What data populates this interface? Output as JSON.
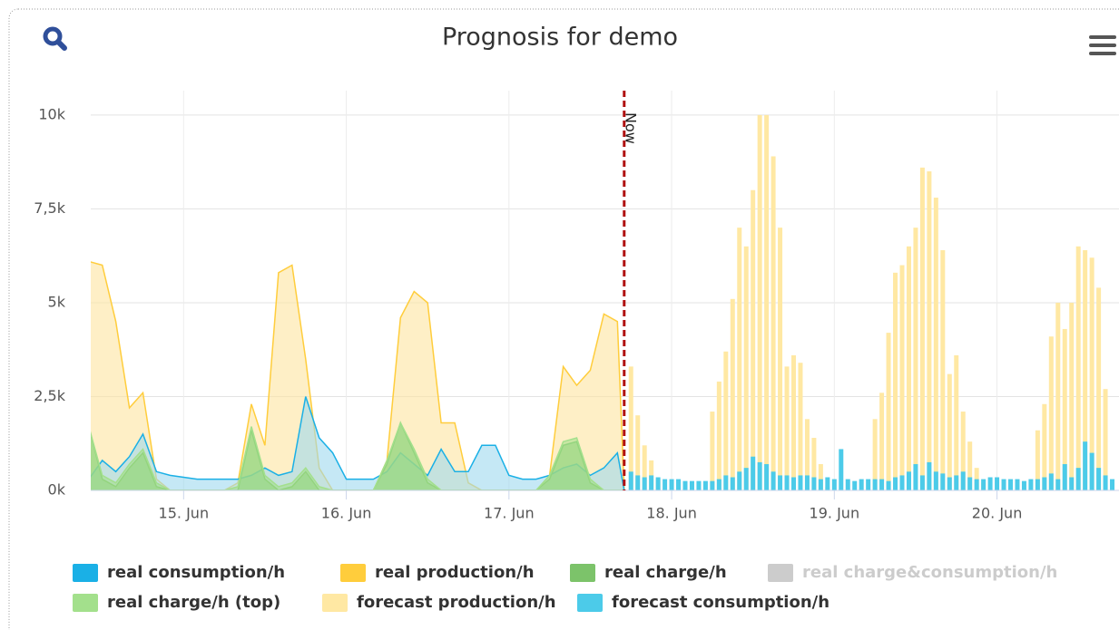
{
  "chart_data": {
    "type": "mixed",
    "title": "Prognosis for demo",
    "xlim": [
      -13.7,
      138
    ],
    "xticks": [
      {
        "value": 0,
        "label": "15. Jun"
      },
      {
        "value": 24,
        "label": "16. Jun"
      },
      {
        "value": 48,
        "label": "17. Jun"
      },
      {
        "value": 72,
        "label": "18. Jun"
      },
      {
        "value": 96,
        "label": "19. Jun"
      },
      {
        "value": 120,
        "label": "20. Jun"
      }
    ],
    "ylim": [
      0,
      10650
    ],
    "yticks": [
      {
        "value": 0,
        "label": "0k"
      },
      {
        "value": 2500,
        "label": "2,5k"
      },
      {
        "value": 5000,
        "label": "5k"
      },
      {
        "value": 7500,
        "label": "7,5k"
      },
      {
        "value": 10000,
        "label": "10k"
      }
    ],
    "grid": true,
    "plot_lines": [
      {
        "value": 65,
        "label": "Now",
        "color": "#b01010"
      }
    ],
    "series": [
      {
        "name": "real consumption/h",
        "type": "area",
        "color": "#1ab0e6",
        "fill": "#9ed9ef",
        "x": [
          -14,
          -12,
          -10,
          -8,
          -6,
          -4,
          -2,
          0,
          2,
          4,
          6,
          8,
          10,
          12,
          14,
          16,
          18,
          20,
          22,
          24,
          26,
          28,
          30,
          32,
          34,
          36,
          38,
          40,
          42,
          44,
          46,
          48,
          50,
          52,
          54,
          56,
          58,
          60,
          62,
          64,
          65
        ],
        "values": [
          300,
          800,
          500,
          900,
          1500,
          500,
          400,
          350,
          300,
          300,
          300,
          300,
          400,
          600,
          400,
          500,
          2500,
          1400,
          1000,
          300,
          300,
          300,
          500,
          1000,
          700,
          400,
          1100,
          500,
          500,
          1200,
          1200,
          400,
          300,
          300,
          400,
          600,
          700,
          400,
          600,
          1000,
          0
        ]
      },
      {
        "name": "real production/h",
        "type": "area",
        "color": "#ffcd3c",
        "fill": "#fde4a0",
        "x": [
          -14,
          -12,
          -10,
          -8,
          -6,
          -4,
          -2,
          0,
          2,
          4,
          6,
          8,
          10,
          12,
          14,
          16,
          18,
          20,
          22,
          24,
          26,
          28,
          30,
          32,
          34,
          36,
          38,
          40,
          42,
          44,
          46,
          48,
          50,
          52,
          54,
          56,
          58,
          60,
          62,
          64,
          65
        ],
        "values": [
          6100,
          6000,
          4500,
          2200,
          2600,
          300,
          0,
          0,
          0,
          0,
          0,
          200,
          2300,
          1200,
          5800,
          6000,
          3500,
          600,
          0,
          0,
          0,
          0,
          800,
          4600,
          5300,
          5000,
          1800,
          1800,
          200,
          0,
          0,
          0,
          0,
          0,
          400,
          3300,
          2800,
          3200,
          4700,
          4500,
          0
        ]
      },
      {
        "name": "real charge/h",
        "type": "area",
        "color": "#7cc36a",
        "fill": "#86c673",
        "x": [
          -14,
          -12,
          -10,
          -8,
          -6,
          -4,
          -2,
          0,
          2,
          4,
          6,
          8,
          10,
          12,
          14,
          16,
          18,
          20,
          22,
          24,
          26,
          28,
          30,
          32,
          34,
          36,
          38,
          40,
          42,
          44,
          46,
          48,
          50,
          52,
          54,
          56,
          58,
          60,
          62,
          64,
          65
        ],
        "values": [
          1700,
          300,
          100,
          600,
          1000,
          100,
          0,
          0,
          0,
          0,
          0,
          0,
          1600,
          300,
          0,
          100,
          500,
          0,
          0,
          0,
          0,
          0,
          700,
          1800,
          1000,
          200,
          0,
          0,
          0,
          0,
          0,
          0,
          0,
          0,
          300,
          1200,
          1300,
          200,
          0,
          0,
          0
        ]
      },
      {
        "name": "real charge&consumption/h",
        "type": "area",
        "color": "#cccccc",
        "visible": false
      },
      {
        "name": "real charge/h (top)",
        "type": "area",
        "color": "#a3e08c",
        "fill": "#a3e08c",
        "x": [
          -14,
          -12,
          -10,
          -8,
          -6,
          -4,
          -2,
          0,
          2,
          4,
          6,
          8,
          10,
          12,
          14,
          16,
          18,
          20,
          22,
          24,
          26,
          28,
          30,
          32,
          34,
          36,
          38,
          40,
          42,
          44,
          46,
          48,
          50,
          52,
          54,
          56,
          58,
          60,
          62,
          64,
          65
        ],
        "values": [
          1700,
          400,
          200,
          700,
          1100,
          200,
          0,
          0,
          0,
          0,
          0,
          100,
          1700,
          400,
          100,
          200,
          600,
          100,
          0,
          0,
          0,
          0,
          800,
          1800,
          1100,
          300,
          0,
          0,
          0,
          0,
          0,
          0,
          0,
          0,
          400,
          1300,
          1400,
          300,
          0,
          0,
          0
        ]
      },
      {
        "name": "forecast production/h",
        "type": "column",
        "color": "#ffe8a3",
        "x": [
          66,
          67,
          68,
          69,
          70,
          71,
          72,
          73,
          74,
          75,
          76,
          77,
          78,
          79,
          80,
          81,
          82,
          83,
          84,
          85,
          86,
          87,
          88,
          89,
          90,
          91,
          92,
          93,
          94,
          95,
          96,
          97,
          98,
          99,
          100,
          101,
          102,
          103,
          104,
          105,
          106,
          107,
          108,
          109,
          110,
          111,
          112,
          113,
          114,
          115,
          116,
          117,
          118,
          119,
          120,
          121,
          122,
          123,
          124,
          125,
          126,
          127,
          128,
          129,
          130,
          131,
          132,
          133,
          134,
          135,
          136,
          137
        ],
        "values": [
          3300,
          2000,
          1200,
          800,
          300,
          0,
          0,
          0,
          0,
          0,
          0,
          0,
          2100,
          2900,
          3700,
          5100,
          7000,
          6500,
          8000,
          10000,
          10000,
          8900,
          7000,
          3300,
          3600,
          3400,
          1900,
          1400,
          700,
          100,
          0,
          0,
          0,
          0,
          0,
          0,
          1900,
          2600,
          4200,
          5800,
          6000,
          6500,
          7000,
          8600,
          8500,
          7800,
          6400,
          3100,
          3600,
          2100,
          1300,
          600,
          200,
          0,
          0,
          0,
          0,
          0,
          0,
          0,
          1600,
          2300,
          4100,
          5000,
          4300,
          5000,
          6500,
          6400,
          6200,
          5400,
          2700,
          0
        ]
      },
      {
        "name": "forecast consumption/h",
        "type": "column",
        "color": "#4ccbe9",
        "x": [
          66,
          67,
          68,
          69,
          70,
          71,
          72,
          73,
          74,
          75,
          76,
          77,
          78,
          79,
          80,
          81,
          82,
          83,
          84,
          85,
          86,
          87,
          88,
          89,
          90,
          91,
          92,
          93,
          94,
          95,
          96,
          97,
          98,
          99,
          100,
          101,
          102,
          103,
          104,
          105,
          106,
          107,
          108,
          109,
          110,
          111,
          112,
          113,
          114,
          115,
          116,
          117,
          118,
          119,
          120,
          121,
          122,
          123,
          124,
          125,
          126,
          127,
          128,
          129,
          130,
          131,
          132,
          133,
          134,
          135,
          136,
          137
        ],
        "values": [
          500,
          400,
          350,
          400,
          350,
          300,
          300,
          300,
          250,
          250,
          250,
          250,
          250,
          300,
          400,
          350,
          500,
          600,
          900,
          750,
          700,
          500,
          400,
          400,
          350,
          400,
          400,
          350,
          300,
          350,
          300,
          1100,
          300,
          250,
          300,
          300,
          300,
          300,
          250,
          350,
          400,
          500,
          700,
          400,
          750,
          500,
          450,
          350,
          400,
          500,
          350,
          300,
          300,
          350,
          350,
          300,
          300,
          300,
          250,
          300,
          300,
          350,
          450,
          300,
          700,
          350,
          600,
          1300,
          1000,
          600,
          400,
          300
        ]
      }
    ]
  }
}
